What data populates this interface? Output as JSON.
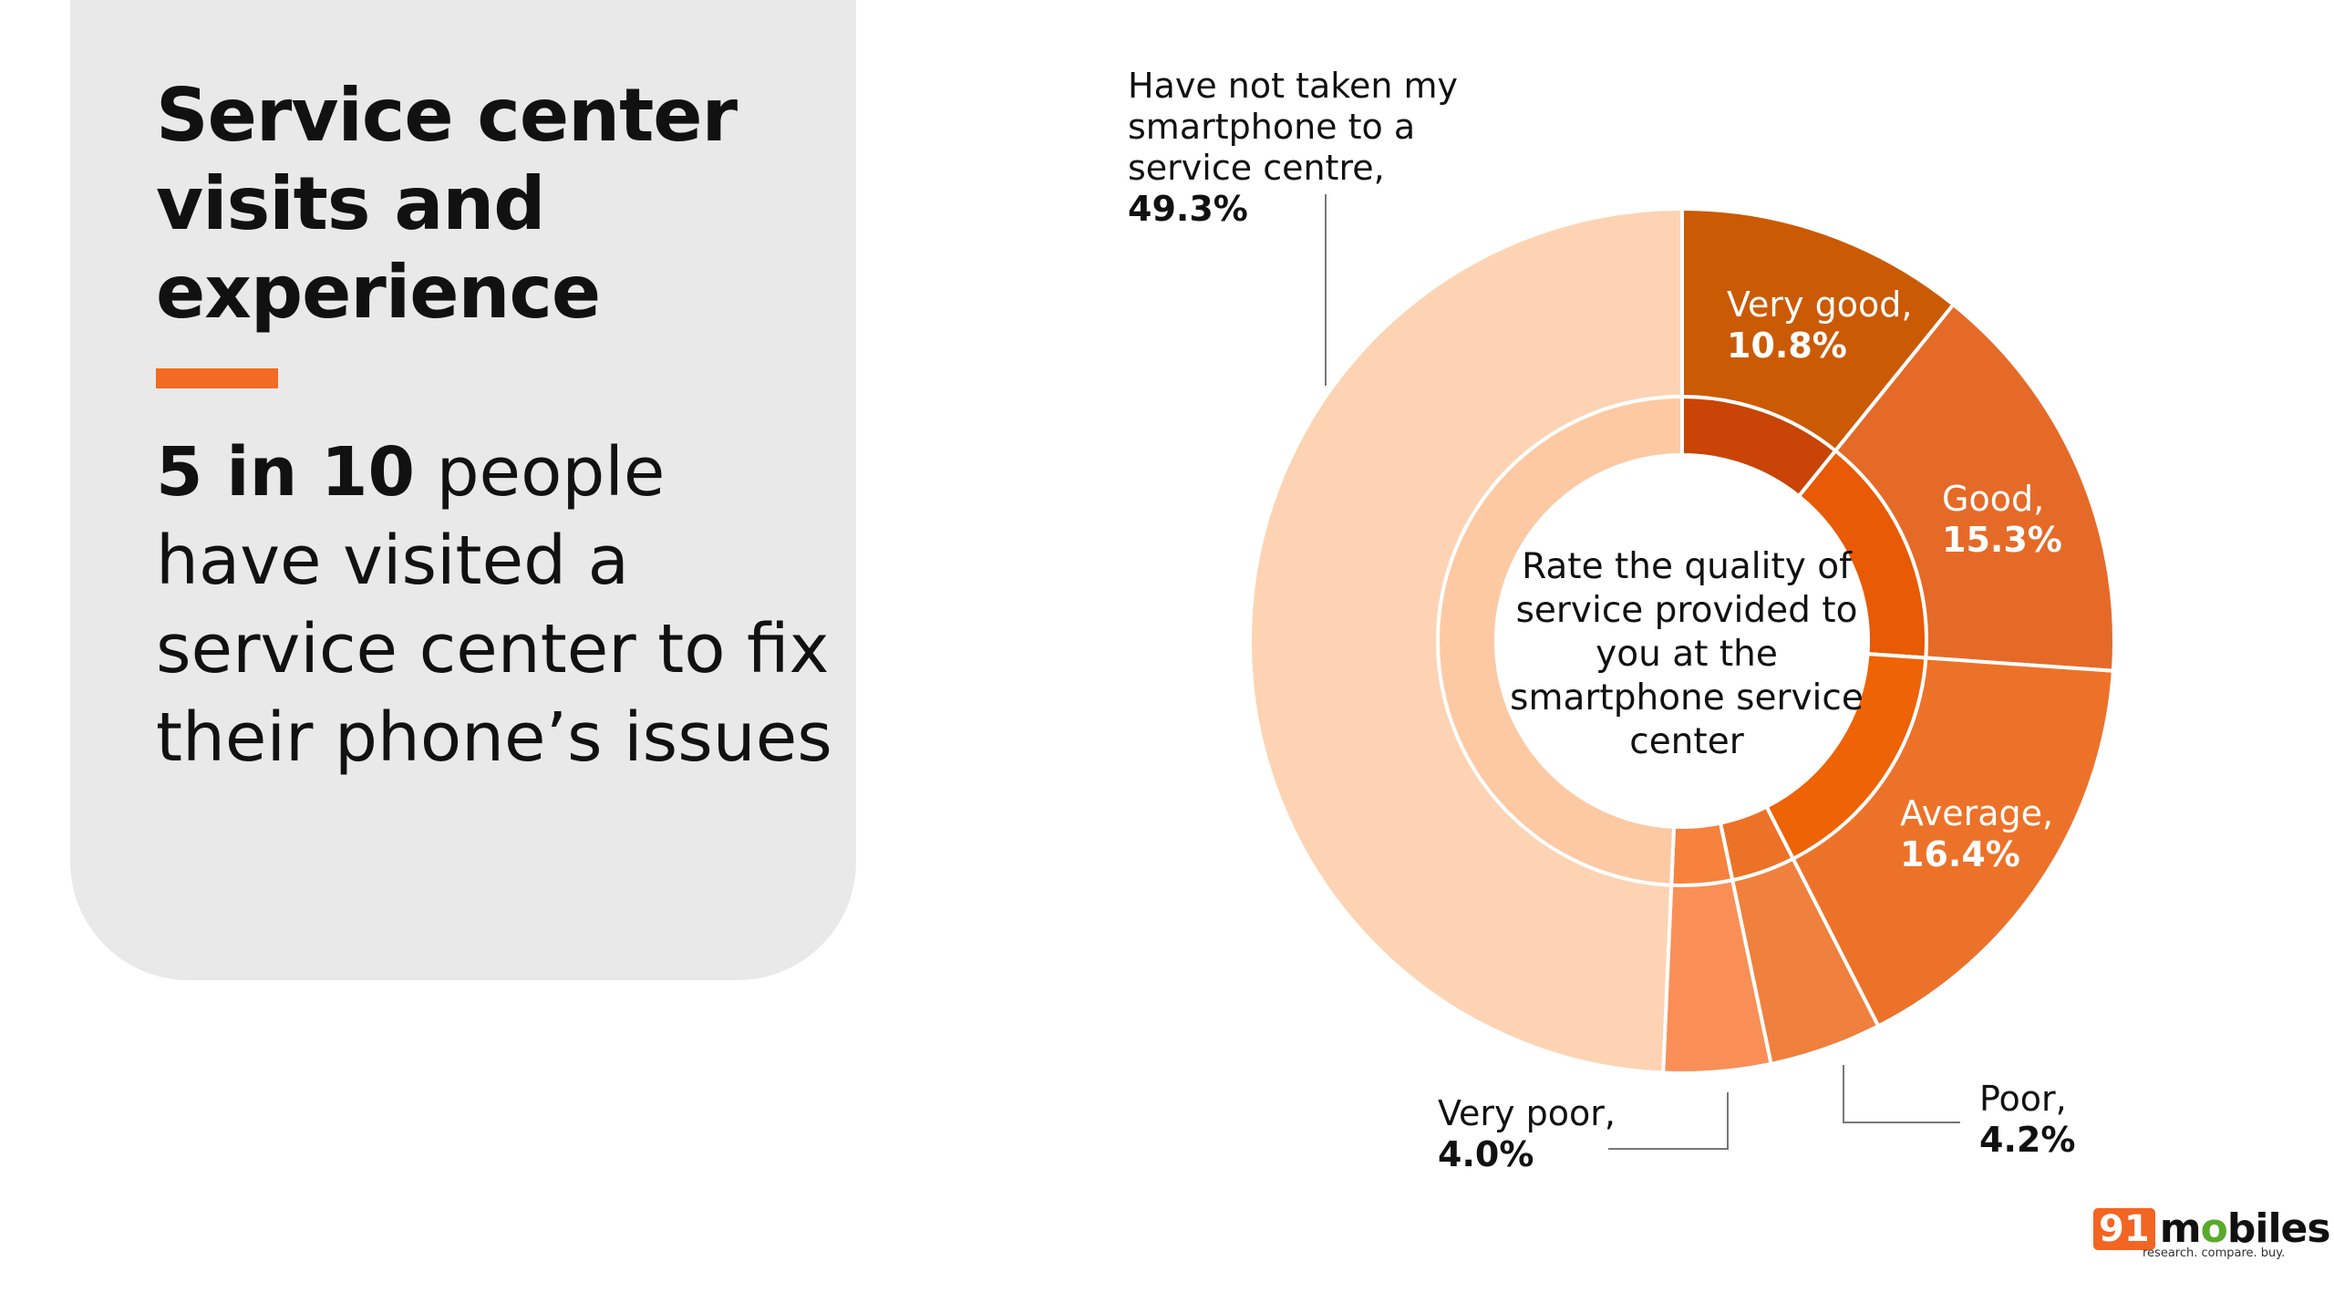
{
  "panel": {
    "title": "Service center visits and experience",
    "highlight": "5 in 10",
    "body": " people have visited a service center  to fix their phone’s issues"
  },
  "colors": {
    "accent": "#f26b22",
    "panel_bg": "#e9e9e9"
  },
  "logo": {
    "number": "91",
    "name_a": "m",
    "name_o": "o",
    "name_b": "biles",
    "tagline": "research. compare. buy."
  },
  "chart_data": {
    "type": "pie",
    "variant": "donut",
    "title": "Rate the quality of service provided to you at the smartphone service center",
    "start": "top, clockwise",
    "slices": [
      {
        "label": "Very good,",
        "value": 10.8,
        "display": "10.8%",
        "color": "#cb5a05",
        "inner_color": "#c94406"
      },
      {
        "label": "Good,",
        "value": 15.3,
        "display": "15.3%",
        "color": "#e56a28",
        "inner_color": "#e85a05"
      },
      {
        "label": "Average,",
        "value": 16.4,
        "display": "16.4%",
        "color": "#ed7229",
        "inner_color": "#ee6306"
      },
      {
        "label": "Poor,",
        "value": 4.2,
        "display": "4.2%",
        "color": "#ef803d",
        "inner_color": "#ec7228"
      },
      {
        "label": "Very poor,",
        "value": 4.0,
        "display": "4.0%",
        "color": "#f98f57",
        "inner_color": "#f6823e"
      },
      {
        "label": "Have not taken my smartphone to a service centre,",
        "value": 49.3,
        "display": "49.3%",
        "color": "#fdd3b3",
        "inner_color": "#fcc9a3"
      }
    ]
  }
}
